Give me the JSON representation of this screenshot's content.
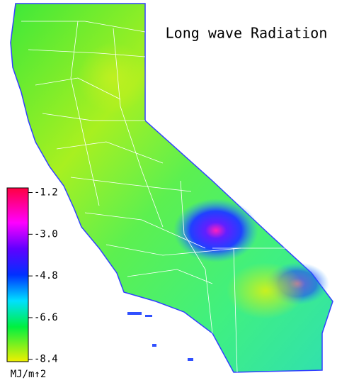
{
  "title": "Long wave Radiation",
  "colorbar": {
    "unit": "MJ/m↑2",
    "lim": [
      -8.5,
      -1.0
    ],
    "ticks": [
      -1.2,
      {
        "value": -3.0,
        "label": "-3.0"
      },
      -4.8,
      -6.6,
      -8.4
    ]
  }
}
